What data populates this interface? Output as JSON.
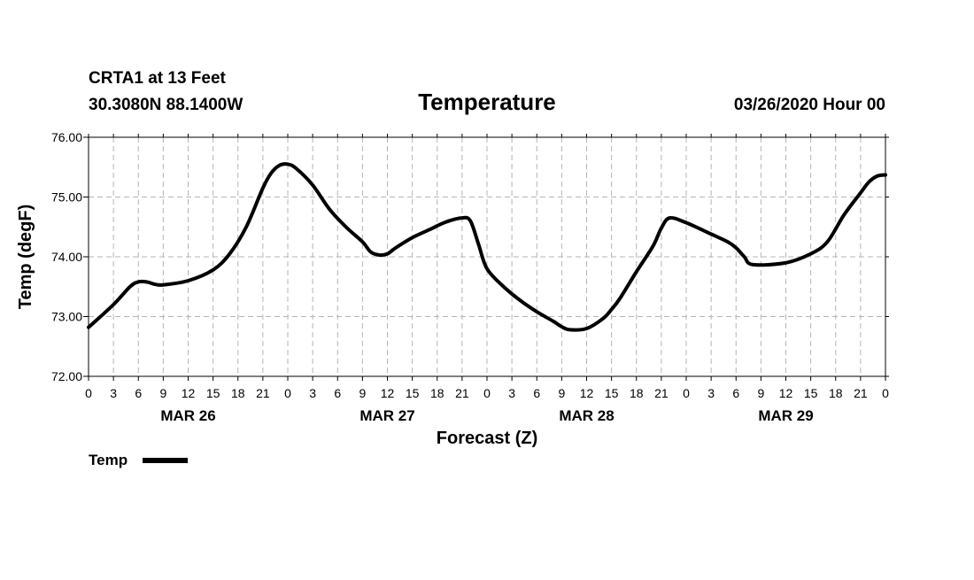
{
  "header": {
    "station": "CRTA1 at 13 Feet",
    "coords": "30.3080N 88.1400W",
    "datetime": "03/26/2020 Hour 00"
  },
  "colors": {
    "line": "#000000",
    "grid": "#b4b4b4",
    "frame": "#000000"
  },
  "chart_data": {
    "type": "line",
    "title": "Temperature",
    "xlabel": "Forecast (Z)",
    "ylabel": "Temp (degF)",
    "ylim": [
      72.0,
      76.0
    ],
    "yticks": [
      "72.00",
      "73.00",
      "74.00",
      "75.00",
      "76.00"
    ],
    "xlim_hours": [
      0,
      96
    ],
    "x_tick_labels": [
      "0",
      "3",
      "6",
      "9",
      "12",
      "15",
      "18",
      "21",
      "0",
      "3",
      "6",
      "9",
      "12",
      "15",
      "18",
      "21",
      "0",
      "3",
      "6",
      "9",
      "12",
      "15",
      "18",
      "21",
      "0",
      "3",
      "6",
      "9",
      "12",
      "15",
      "18",
      "21",
      "0"
    ],
    "date_labels": [
      {
        "label": "MAR 26",
        "hour": 12
      },
      {
        "label": "MAR 27",
        "hour": 36
      },
      {
        "label": "MAR 28",
        "hour": 60
      },
      {
        "label": "MAR 29",
        "hour": 84
      }
    ],
    "grid": true,
    "legend": "bottom-left",
    "series": [
      {
        "name": "Temp",
        "x_hours": [
          0,
          3,
          5,
          6,
          7,
          8,
          9,
          12,
          15,
          17,
          19,
          21,
          22,
          23,
          24,
          25,
          27,
          29,
          31,
          33,
          34,
          35,
          36,
          37,
          39,
          41,
          43,
          45,
          46,
          47,
          48,
          50,
          52,
          54,
          56,
          57,
          58,
          60,
          62,
          63,
          64,
          66,
          68,
          69,
          70,
          72,
          75,
          77,
          78,
          79,
          80,
          84,
          87,
          89,
          91,
          93,
          94,
          95,
          96
        ],
        "values": [
          72.82,
          73.2,
          73.5,
          73.58,
          73.58,
          73.54,
          73.53,
          73.6,
          73.78,
          74.05,
          74.5,
          75.15,
          75.4,
          75.53,
          75.55,
          75.48,
          75.2,
          74.8,
          74.5,
          74.25,
          74.08,
          74.03,
          74.05,
          74.15,
          74.32,
          74.45,
          74.58,
          74.65,
          74.6,
          74.2,
          73.8,
          73.5,
          73.27,
          73.08,
          72.92,
          72.83,
          72.78,
          72.8,
          72.97,
          73.12,
          73.3,
          73.75,
          74.18,
          74.48,
          74.65,
          74.57,
          74.38,
          74.25,
          74.15,
          74.0,
          73.87,
          73.9,
          74.05,
          74.25,
          74.7,
          75.07,
          75.25,
          75.35,
          75.37
        ]
      }
    ]
  }
}
